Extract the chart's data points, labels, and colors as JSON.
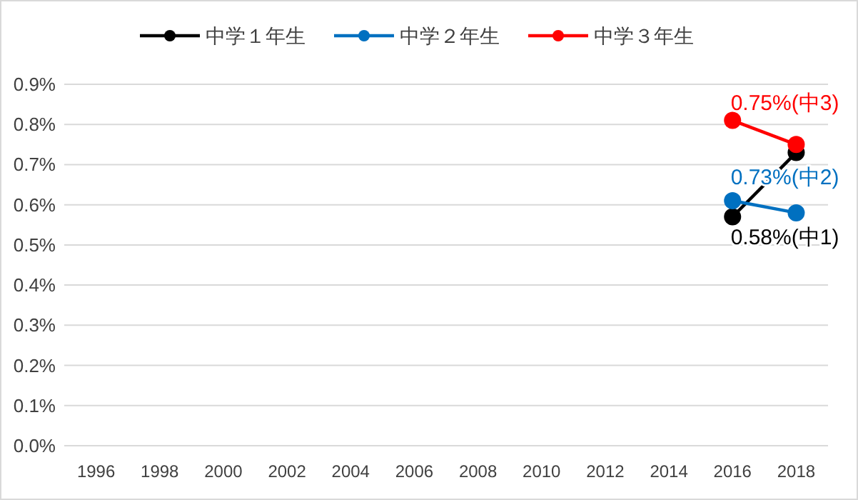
{
  "chart_data": {
    "type": "line",
    "x": [
      2016,
      2018
    ],
    "series": [
      {
        "name": "中学１年生",
        "color": "#000000",
        "values": [
          0.57,
          0.73
        ]
      },
      {
        "name": "中学２年生",
        "color": "#0070c0",
        "values": [
          0.61,
          0.58
        ]
      },
      {
        "name": "中学３年生",
        "color": "#ff0000",
        "values": [
          0.81,
          0.75
        ]
      }
    ],
    "xlim": [
      1995,
      2019
    ],
    "xticks": [
      1996,
      1998,
      2000,
      2002,
      2004,
      2006,
      2008,
      2010,
      2012,
      2014,
      2016,
      2018
    ],
    "ylim": [
      0,
      0.9
    ],
    "yticks": [
      {
        "value": 0,
        "label": "0.0%"
      },
      {
        "value": 0.1,
        "label": "0.1%"
      },
      {
        "value": 0.2,
        "label": "0.2%"
      },
      {
        "value": 0.3,
        "label": "0.3%"
      },
      {
        "value": 0.4,
        "label": "0.4%"
      },
      {
        "value": 0.5,
        "label": "0.5%"
      },
      {
        "value": 0.6,
        "label": "0.6%"
      },
      {
        "value": 0.7,
        "label": "0.7%"
      },
      {
        "value": 0.8,
        "label": "0.8%"
      },
      {
        "value": 0.9,
        "label": "0.9%"
      }
    ],
    "grid": "y",
    "legend": "top",
    "marker": "circle",
    "line_style": "solid",
    "annotations": [
      "0.58%(中1)",
      "0.73%(中2)",
      "0.75%(中3)"
    ]
  }
}
